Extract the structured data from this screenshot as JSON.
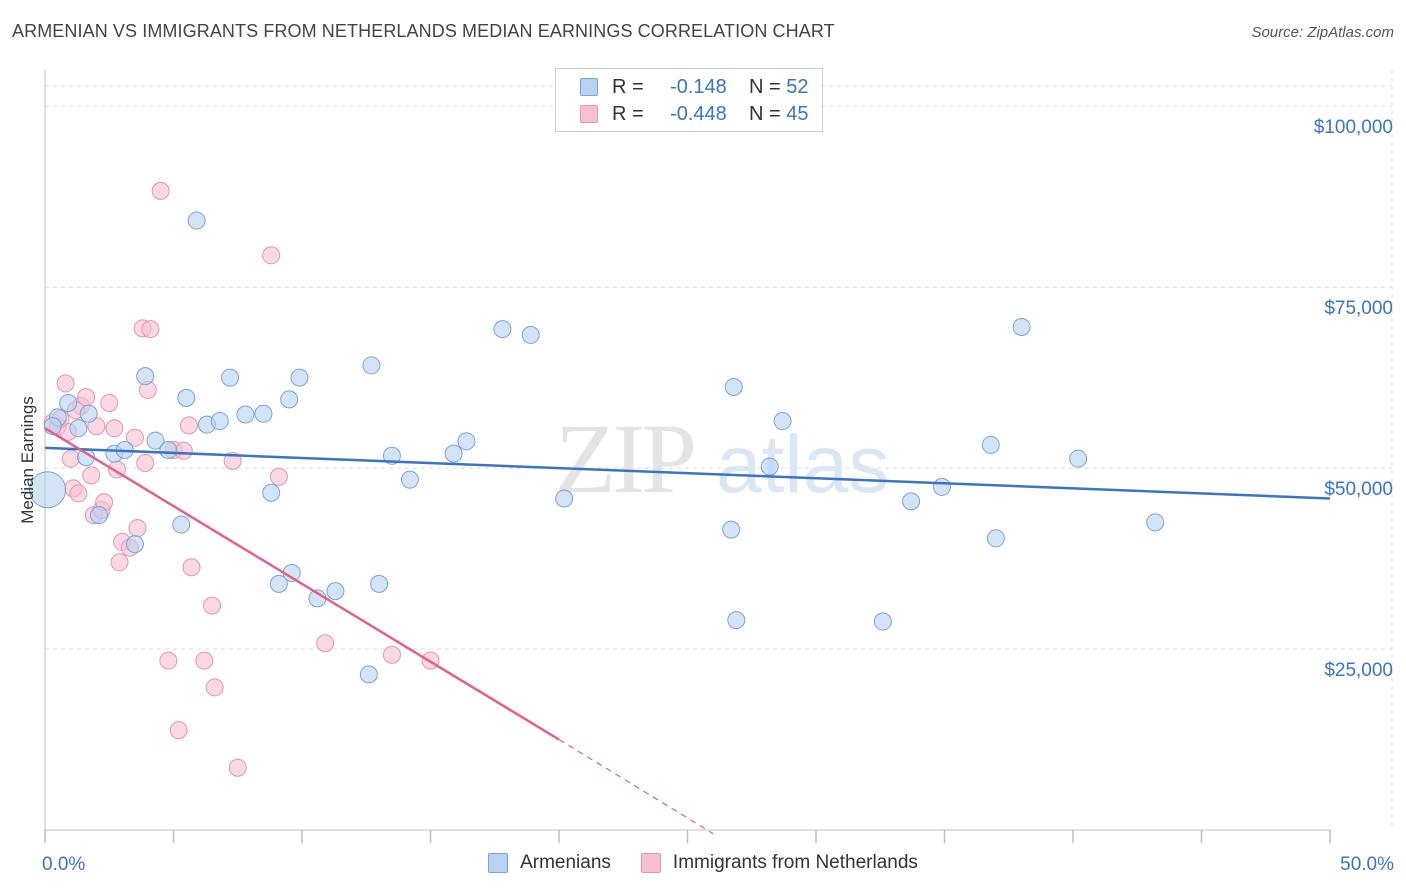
{
  "title": "ARMENIAN VS IMMIGRANTS FROM NETHERLANDS MEDIAN EARNINGS CORRELATION CHART",
  "source": "Source: ZipAtlas.com",
  "watermark": {
    "zip": "ZIP",
    "atlas": "atlas"
  },
  "colors": {
    "blue": "#3a74c4",
    "blue_fill": "#b8d2f2",
    "pink": "#e0608f",
    "pink_fill": "#f6bfd2",
    "grid": "#dcdcdc",
    "axis_label": "#3a74c4"
  },
  "legend": {
    "series": [
      {
        "r_label": "R =",
        "r_value": "-0.148",
        "n_label": "N =",
        "n_value": "52"
      },
      {
        "r_label": "R =",
        "r_value": "-0.448",
        "n_label": "N =",
        "n_value": "45"
      }
    ],
    "bottom": [
      "Armenians",
      "Immigrants from Netherlands"
    ]
  },
  "chart_data": {
    "type": "scatter",
    "xlabel": "",
    "ylabel": "Median Earnings",
    "xlim": [
      0,
      50
    ],
    "ylim": [
      0,
      105000
    ],
    "x_tick_labels": {
      "left": "0.0%",
      "right": "50.0%"
    },
    "y_ticks": [
      {
        "value": 25000,
        "label": "$25,000"
      },
      {
        "value": 50000,
        "label": "$50,000"
      },
      {
        "value": 75000,
        "label": "$75,000"
      },
      {
        "value": 100000,
        "label": "$100,000"
      }
    ],
    "series": [
      {
        "name": "Armenians",
        "r": -0.148,
        "n": 52,
        "trend": {
          "x0": 0,
          "y0": 52800,
          "x1": 50,
          "y1": 45800
        },
        "points": [
          [
            0.1,
            47000
          ],
          [
            0.5,
            57000
          ],
          [
            0.9,
            59000
          ],
          [
            1.3,
            55500
          ],
          [
            1.7,
            57500
          ],
          [
            1.6,
            51500
          ],
          [
            2.7,
            52000
          ],
          [
            3.1,
            52500
          ],
          [
            3.5,
            39500
          ],
          [
            3.9,
            62700
          ],
          [
            4.3,
            53800
          ],
          [
            4.8,
            52500
          ],
          [
            5.3,
            42200
          ],
          [
            5.5,
            59700
          ],
          [
            5.9,
            84200
          ],
          [
            6.3,
            56000
          ],
          [
            6.8,
            56500
          ],
          [
            7.2,
            62500
          ],
          [
            7.8,
            57400
          ],
          [
            8.5,
            57500
          ],
          [
            8.8,
            46600
          ],
          [
            9.1,
            34000
          ],
          [
            9.5,
            59500
          ],
          [
            9.6,
            35500
          ],
          [
            9.9,
            62500
          ],
          [
            10.6,
            32000
          ],
          [
            11.3,
            33000
          ],
          [
            12.7,
            64200
          ],
          [
            12.6,
            21500
          ],
          [
            13.0,
            34000
          ],
          [
            13.5,
            51700
          ],
          [
            14.2,
            48400
          ],
          [
            15.9,
            52000
          ],
          [
            16.4,
            53700
          ],
          [
            17.8,
            69200
          ],
          [
            18.9,
            68400
          ],
          [
            20.2,
            45800
          ],
          [
            26.7,
            41500
          ],
          [
            26.8,
            61200
          ],
          [
            26.9,
            29000
          ],
          [
            28.2,
            50200
          ],
          [
            28.7,
            56500
          ],
          [
            32.6,
            28800
          ],
          [
            33.7,
            45400
          ],
          [
            34.9,
            47400
          ],
          [
            36.8,
            53200
          ],
          [
            37.0,
            40300
          ],
          [
            38.0,
            69500
          ],
          [
            40.2,
            51300
          ],
          [
            43.2,
            42500
          ],
          [
            0.3,
            55800
          ],
          [
            2.1,
            43500
          ]
        ]
      },
      {
        "name": "Immigrants from Netherlands",
        "r": -0.448,
        "n": 45,
        "trend": {
          "x0": 0,
          "y0": 55500,
          "x1": 20,
          "y1": 12500,
          "dash_to_x": 26,
          "dash_to_y": -500
        },
        "points": [
          [
            0.3,
            56300
          ],
          [
            0.5,
            55800
          ],
          [
            0.8,
            61700
          ],
          [
            0.9,
            55000
          ],
          [
            1.0,
            51300
          ],
          [
            1.1,
            47200
          ],
          [
            1.3,
            46500
          ],
          [
            1.4,
            58600
          ],
          [
            1.6,
            59800
          ],
          [
            1.8,
            49000
          ],
          [
            1.9,
            43500
          ],
          [
            2.0,
            55800
          ],
          [
            2.2,
            44200
          ],
          [
            2.3,
            45300
          ],
          [
            2.5,
            59000
          ],
          [
            2.7,
            55500
          ],
          [
            2.8,
            49800
          ],
          [
            2.9,
            37000
          ],
          [
            3.0,
            39800
          ],
          [
            3.3,
            39000
          ],
          [
            3.5,
            54200
          ],
          [
            3.6,
            41700
          ],
          [
            3.8,
            69300
          ],
          [
            3.9,
            50700
          ],
          [
            4.0,
            60800
          ],
          [
            4.1,
            69200
          ],
          [
            4.5,
            88300
          ],
          [
            4.8,
            23400
          ],
          [
            5.0,
            52500
          ],
          [
            5.2,
            13800
          ],
          [
            5.6,
            55900
          ],
          [
            5.7,
            36300
          ],
          [
            6.2,
            23400
          ],
          [
            6.5,
            31000
          ],
          [
            6.6,
            19700
          ],
          [
            7.3,
            51000
          ],
          [
            7.5,
            8600
          ],
          [
            8.8,
            79400
          ],
          [
            9.1,
            48800
          ],
          [
            10.9,
            25800
          ],
          [
            13.5,
            24200
          ],
          [
            15.0,
            23400
          ],
          [
            5.4,
            52400
          ],
          [
            1.2,
            58000
          ],
          [
            0.6,
            56800
          ]
        ]
      }
    ]
  }
}
